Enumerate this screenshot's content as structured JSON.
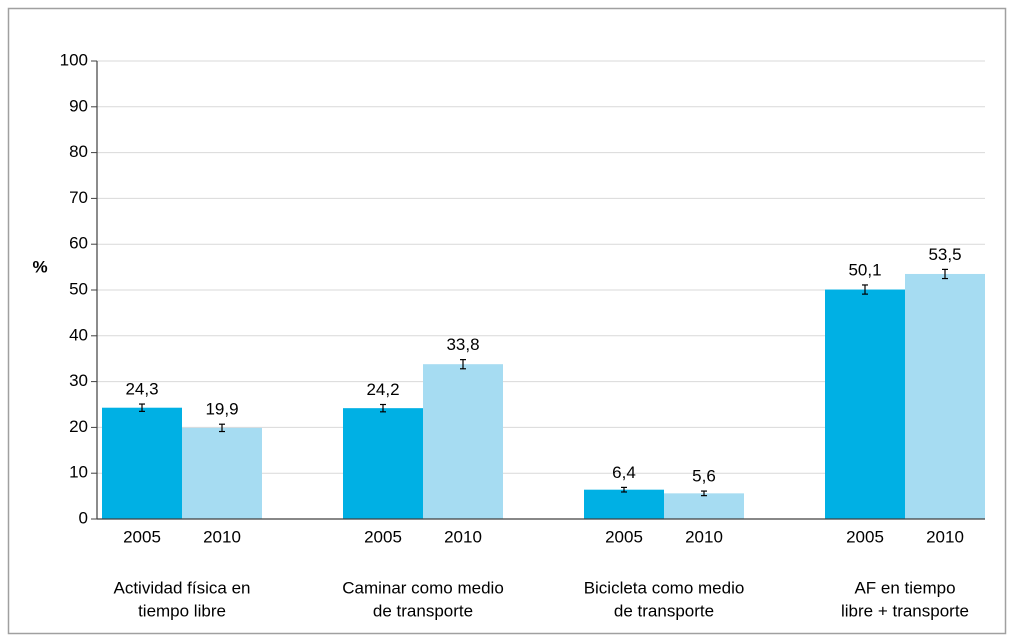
{
  "chart_data": {
    "type": "bar",
    "y_label": "%",
    "categories": [
      [
        "Actividad física en",
        "tiempo libre"
      ],
      [
        "Caminar como medio",
        "de transporte"
      ],
      [
        "Bicicleta como medio",
        "de transporte"
      ],
      [
        "AF en tiempo",
        "libre + transporte"
      ]
    ],
    "series": [
      {
        "name": "2005",
        "color": "#00b0e4",
        "values": [
          24.3,
          24.2,
          6.4,
          50.1
        ],
        "value_labels": [
          "24,3",
          "24,2",
          "6,4",
          "50,1"
        ],
        "errors": [
          0.8,
          0.8,
          0.5,
          1.0
        ]
      },
      {
        "name": "2010",
        "color": "#a6dcf2",
        "values": [
          19.9,
          33.8,
          5.6,
          53.5
        ],
        "value_labels": [
          "19,9",
          "33,8",
          "5,6",
          "53,5"
        ],
        "errors": [
          0.8,
          1.0,
          0.5,
          1.0
        ]
      }
    ],
    "ylim": [
      0,
      100
    ],
    "yticks": [
      0,
      10,
      20,
      30,
      40,
      50,
      60,
      70,
      80,
      90,
      100
    ],
    "grid": true
  }
}
